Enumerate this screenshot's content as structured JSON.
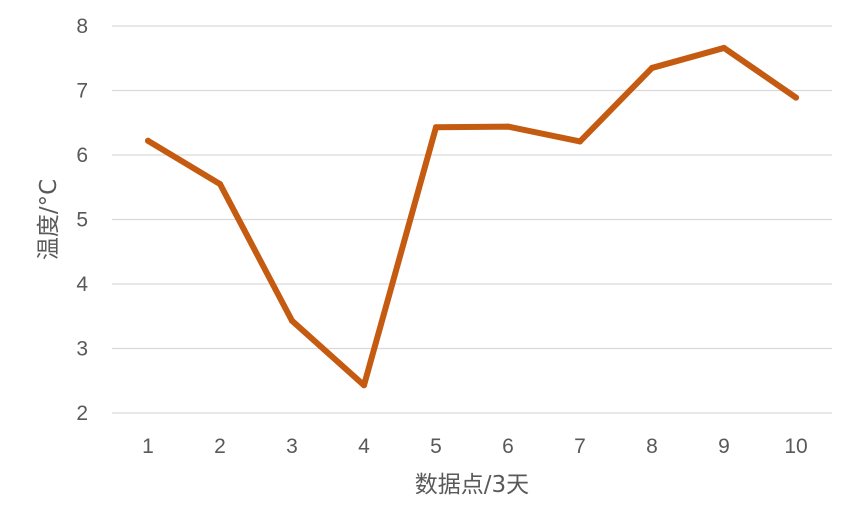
{
  "chart_data": {
    "type": "line",
    "title": "",
    "xlabel": "数据点/3天",
    "ylabel": "温度/°C",
    "x": [
      1,
      2,
      3,
      4,
      5,
      6,
      7,
      8,
      9,
      10
    ],
    "xtick_labels": [
      "1",
      "2",
      "3",
      "4",
      "5",
      "6",
      "7",
      "8",
      "9",
      "10"
    ],
    "ylim": [
      2,
      8
    ],
    "yticks": [
      2,
      3,
      4,
      5,
      6,
      7,
      8
    ],
    "grid": true,
    "legend": "none",
    "series": [
      {
        "values": [
          6.22,
          5.55,
          3.43,
          2.43,
          6.43,
          6.44,
          6.21,
          7.35,
          7.66,
          6.89
        ],
        "color": "#C55A11"
      }
    ]
  }
}
